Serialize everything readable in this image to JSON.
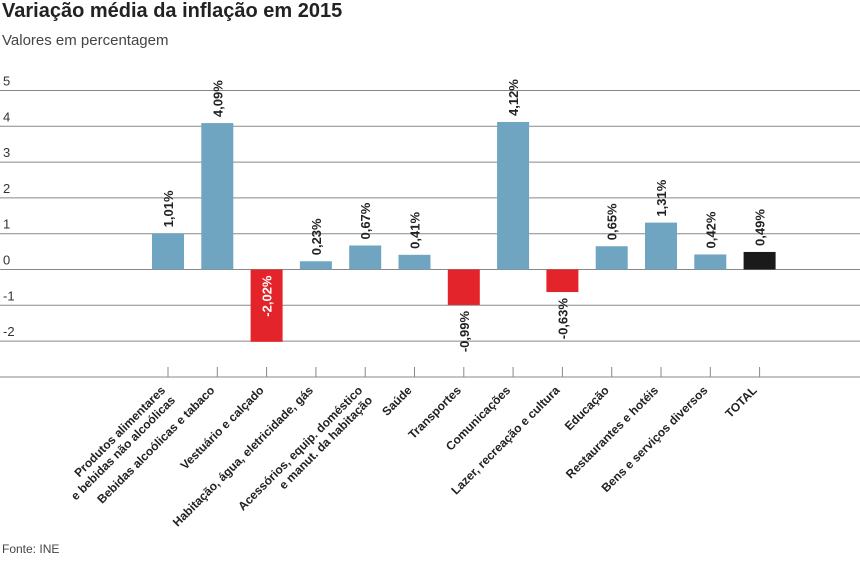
{
  "header": {
    "title": "Variação média da inflação em 2015",
    "subtitle": "Valores em percentagem"
  },
  "footer": {
    "source": "Fonte: INE"
  },
  "colors": {
    "positive": "#6fa5c1",
    "negative": "#e3242b",
    "total": "#1a1a1a",
    "grid": "#888888",
    "axis": "#888888"
  },
  "chart_data": {
    "type": "bar",
    "title": "Variação média da inflação em 2015",
    "subtitle": "Valores em percentagem",
    "ylim": [
      -3,
      5
    ],
    "yticks": [
      5,
      4,
      3,
      2,
      1,
      0,
      -1,
      -2
    ],
    "grid": true,
    "categories": [
      [
        "Produtos alimentares",
        "e bebidas não alcoólicas"
      ],
      [
        "Bebidas alcoólicas e tabaco"
      ],
      [
        "Vestuário e calçado"
      ],
      [
        "Habitação, água, eletricidade, gás"
      ],
      [
        "Acessórios, equip. doméstico",
        "e manut. da habitação"
      ],
      [
        "Saúde"
      ],
      [
        "Transportes"
      ],
      [
        "Comunicações"
      ],
      [
        "Lazer, recreação e cultura"
      ],
      [
        "Educação"
      ],
      [
        "Restaurantes e hotéis"
      ],
      [
        "Bens e serviços diversos"
      ],
      [
        "TOTAL"
      ]
    ],
    "values": [
      1.01,
      4.09,
      -2.02,
      0.23,
      0.67,
      0.41,
      -0.99,
      4.12,
      -0.63,
      0.65,
      1.31,
      0.42,
      0.49
    ],
    "value_labels": [
      "1,01%",
      "4,09%",
      "-2,02%",
      "0,23%",
      "0,67%",
      "0,41%",
      "-0,99%",
      "4,12%",
      "-0,63%",
      "0,65%",
      "1,31%",
      "0,42%",
      "0,49%"
    ],
    "highlight_last": true
  }
}
